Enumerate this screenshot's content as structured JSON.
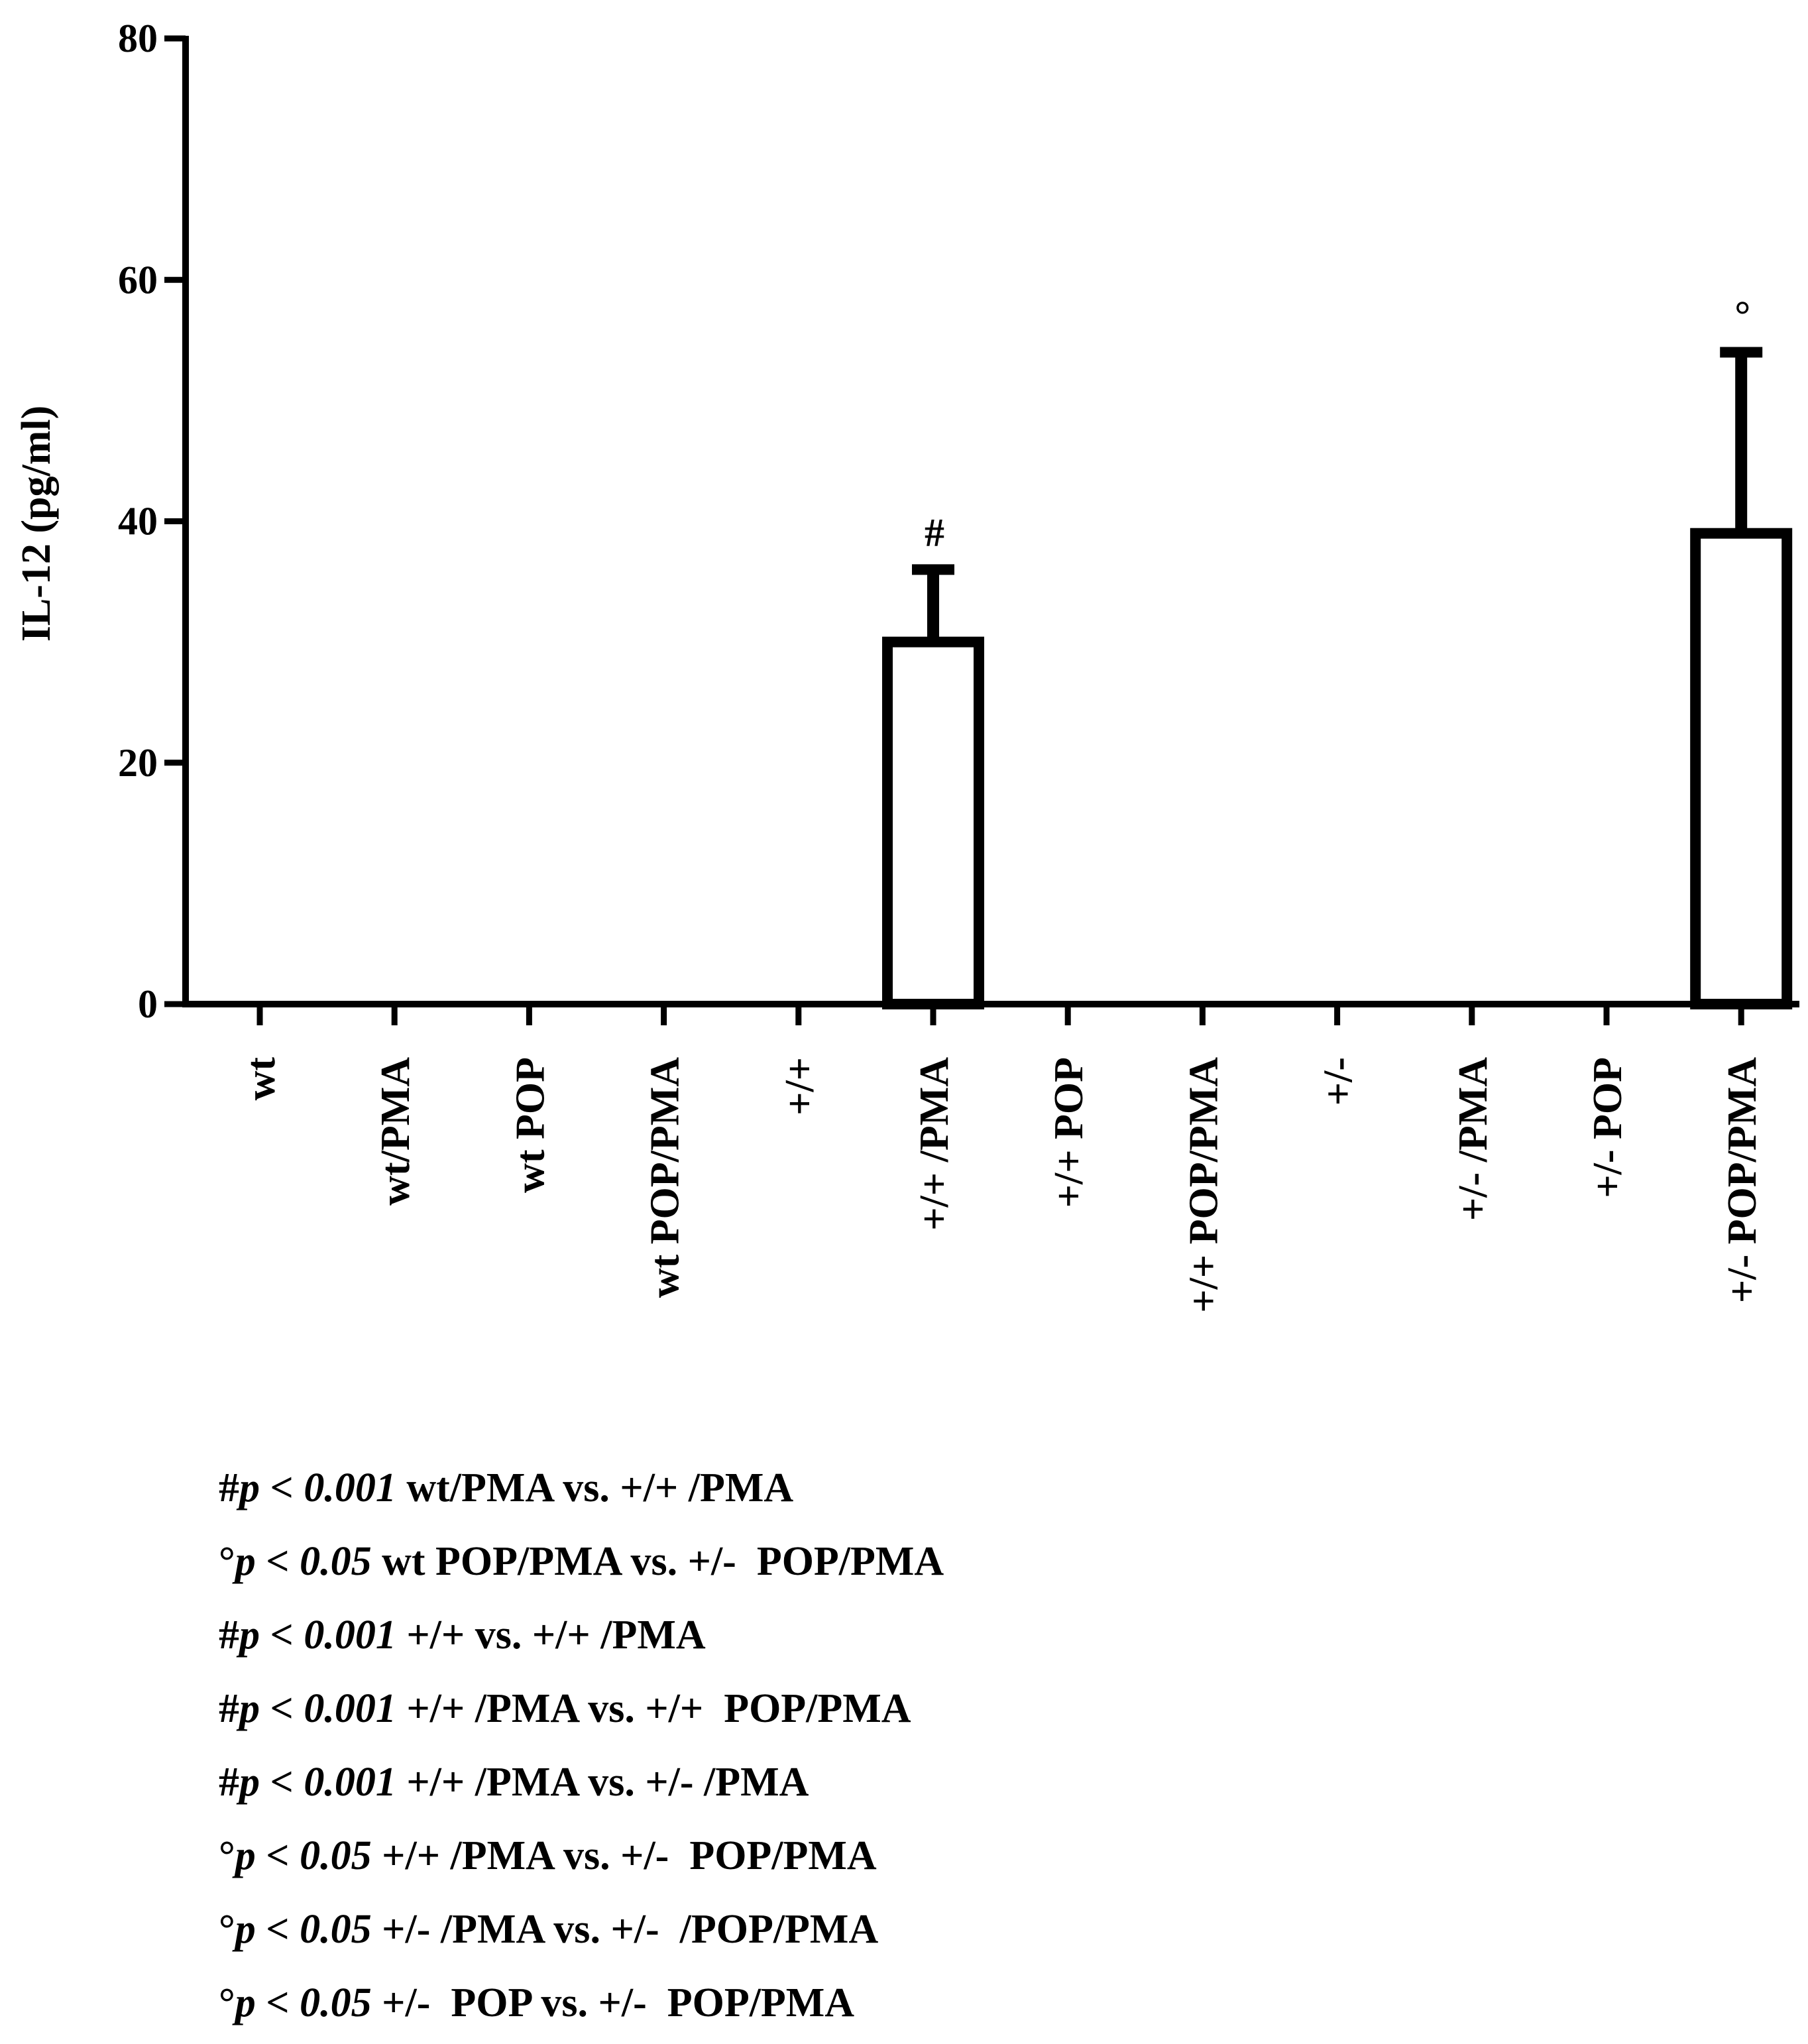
{
  "chart_data": {
    "type": "bar",
    "title": "",
    "xlabel": "",
    "ylabel": "IL-12 (pg/ml)",
    "ylim": [
      0,
      80
    ],
    "yticks": [
      0,
      20,
      40,
      60,
      80
    ],
    "categories": [
      "wt",
      "wt/PMA",
      "wt POP",
      "wt POP/PMA",
      "+/+",
      "+/+ /PMA",
      "+/+ POP",
      "+/+ POP/PMA",
      "+/-",
      "+/- /PMA",
      "+/- POP",
      "+/- POP/PMA"
    ],
    "values": [
      0,
      0,
      0,
      0,
      0,
      30,
      0,
      0,
      0,
      0,
      0,
      39
    ],
    "error_upper": [
      0,
      0,
      0,
      0,
      0,
      36,
      0,
      0,
      0,
      0,
      0,
      54
    ],
    "annotations": [
      "",
      "",
      "",
      "",
      "",
      "#",
      "",
      "",
      "",
      "",
      "",
      "°"
    ],
    "category_colors": [
      "#000000",
      "#000000",
      "#000000",
      "#000000",
      "#1f3f3f",
      "#1f3f3f",
      "#000000",
      "#1f3f3f",
      "#1f3f3f",
      "#1f3f3f",
      "#1f3f3f",
      "#1f3f3f"
    ],
    "legend": [
      {
        "symbol": "#",
        "p": "p",
        "op": " < ",
        "value": "0.001",
        "text": " wt/PMA vs. +/+ /PMA"
      },
      {
        "symbol": "°",
        "p": "p",
        "op": " < ",
        "value": "0.05",
        "text": " wt POP/PMA vs. +/-  POP/PMA"
      },
      {
        "symbol": "#",
        "p": "p",
        "op": " < ",
        "value": "0.001",
        "text": " +/+ vs. +/+ /PMA"
      },
      {
        "symbol": "#",
        "p": "p",
        "op": " < ",
        "value": "0.001",
        "text": " +/+ /PMA vs. +/+  POP/PMA"
      },
      {
        "symbol": "#",
        "p": "p",
        "op": " < ",
        "value": "0.001",
        "text": " +/+ /PMA vs. +/- /PMA"
      },
      {
        "symbol": "°",
        "p": "p",
        "op": " < ",
        "value": "0.05",
        "text": " +/+ /PMA vs. +/-  POP/PMA"
      },
      {
        "symbol": "°",
        "p": "p",
        "op": " < ",
        "value": "0.05",
        "text": " +/- /PMA vs. +/-  /POP/PMA"
      },
      {
        "symbol": "°",
        "p": "p",
        "op": " < ",
        "value": "0.05",
        "text": " +/-  POP vs. +/-  POP/PMA"
      }
    ]
  }
}
